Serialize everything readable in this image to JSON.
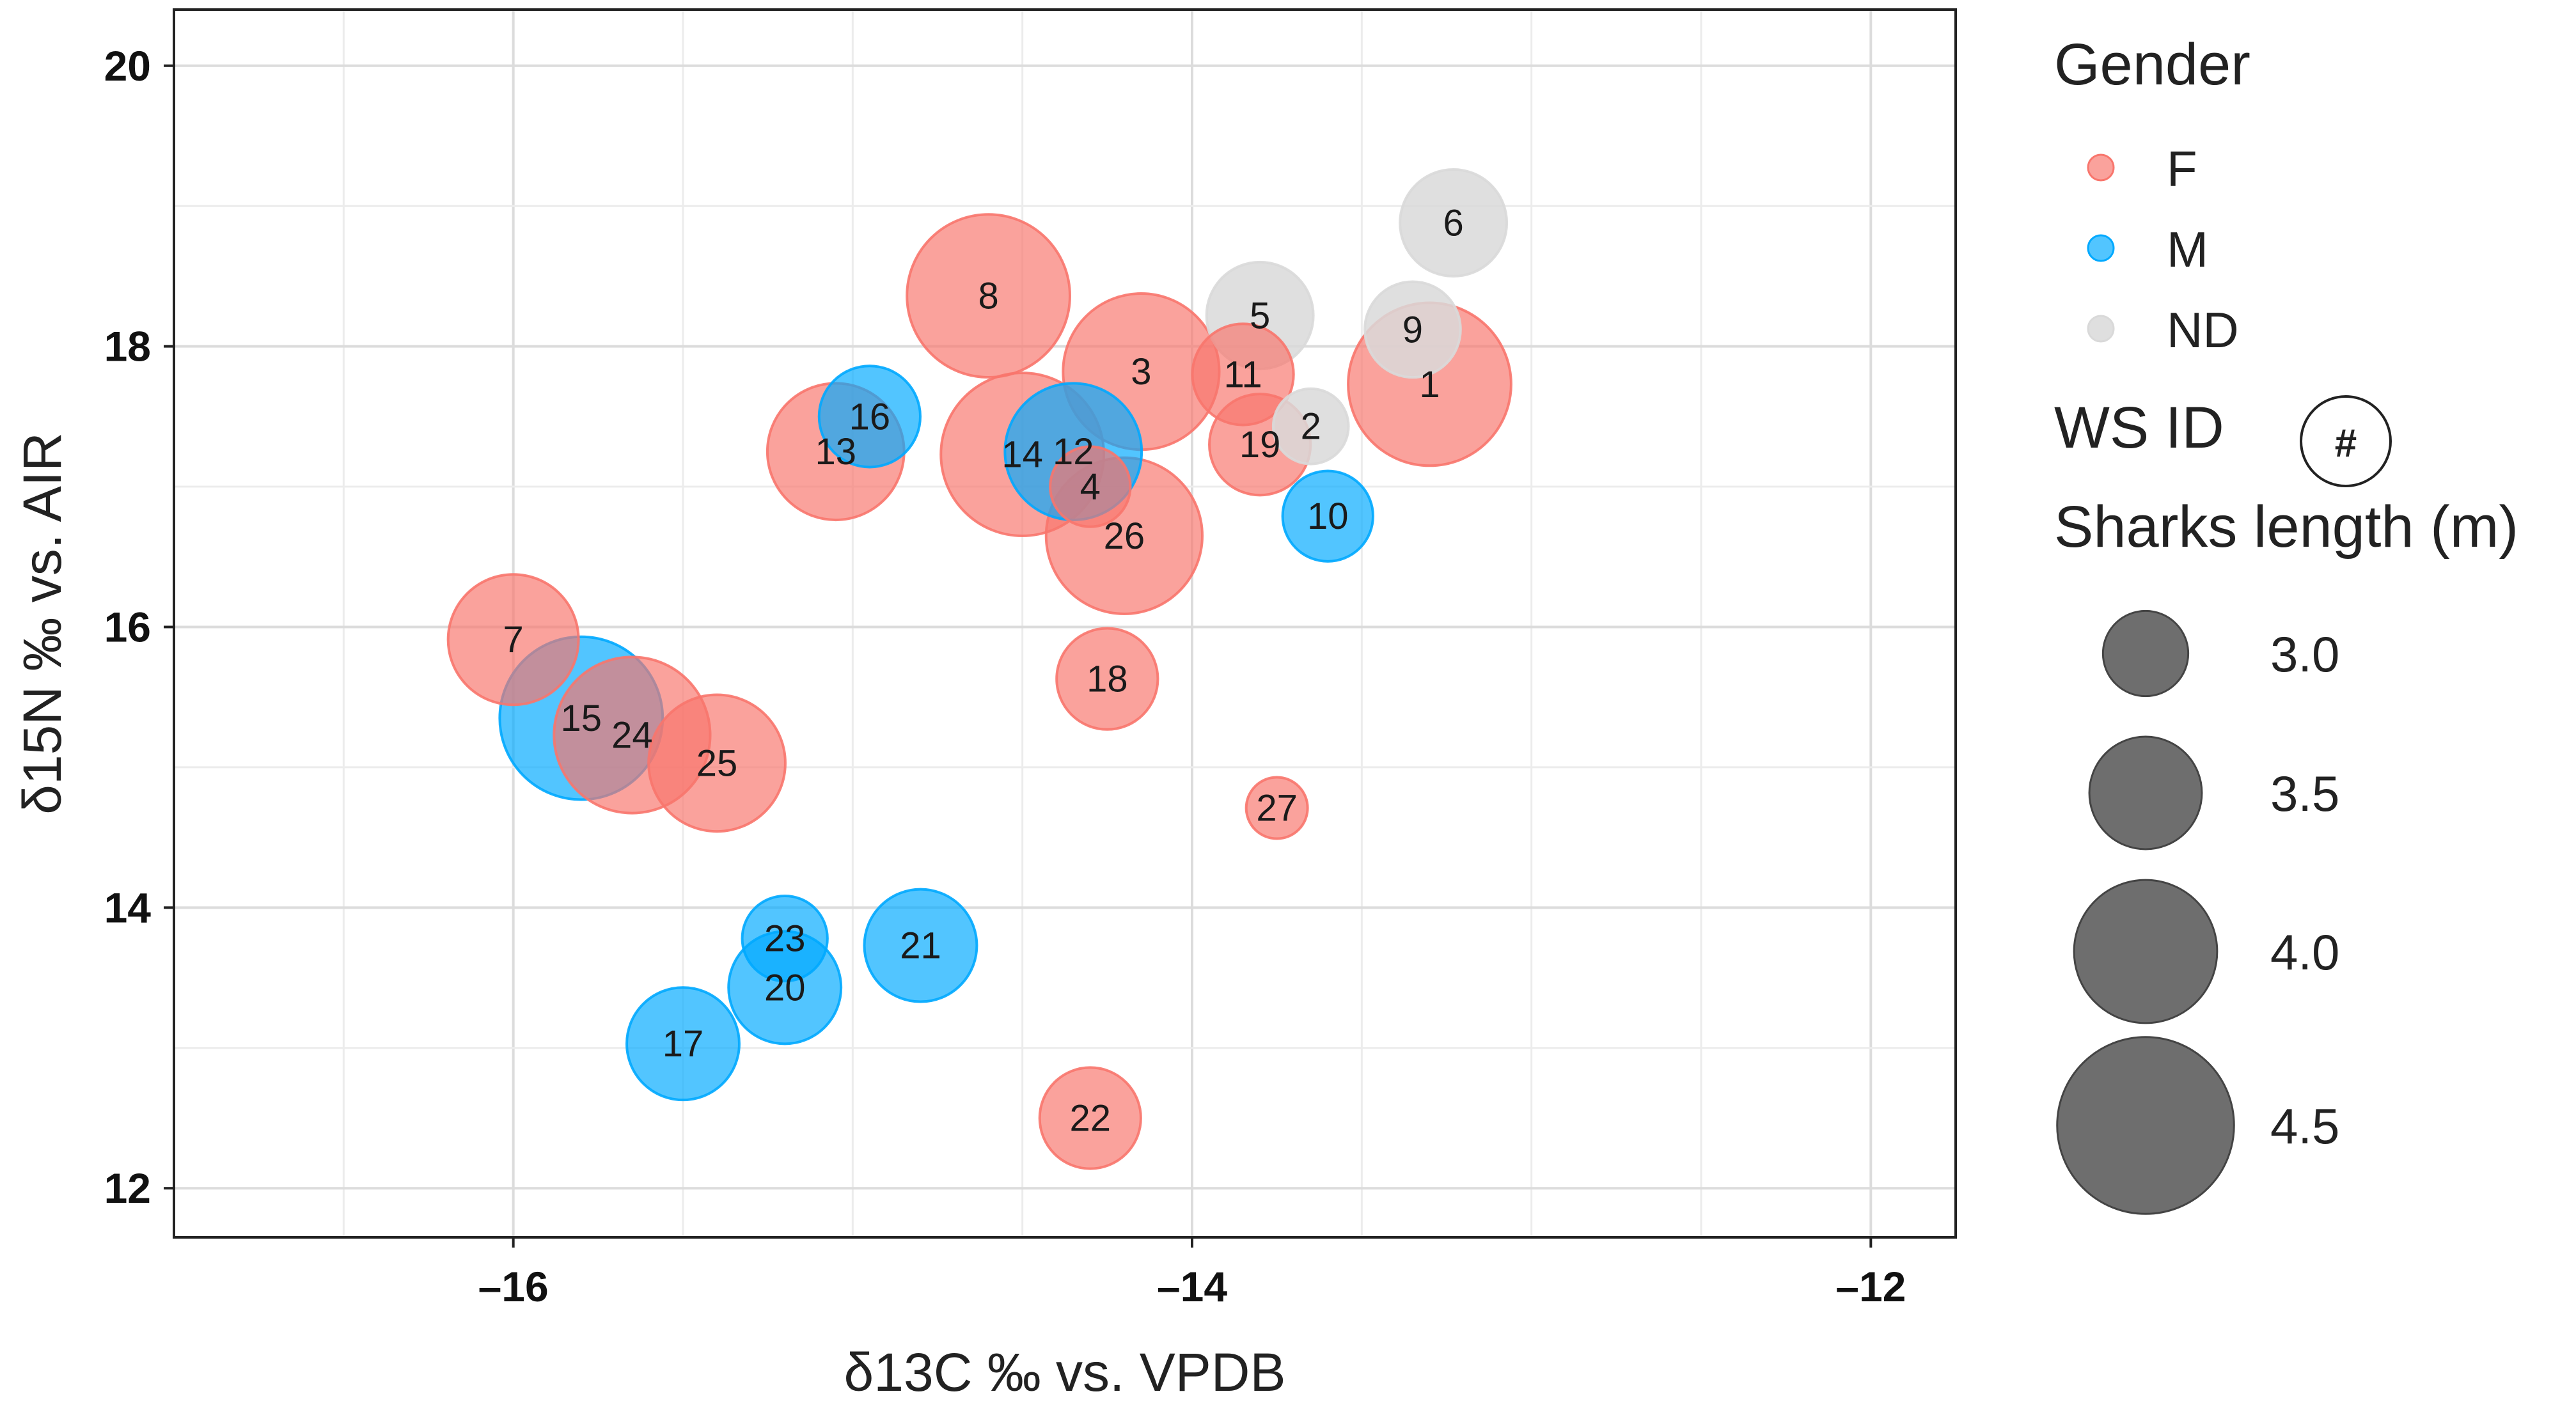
{
  "chart_data": {
    "type": "scatter",
    "subtype": "bubble",
    "title": "",
    "xlabel": "δ13C ‰ vs. VPDB",
    "ylabel": "δ15N ‰ vs. AIR",
    "xlim": [
      -17.0,
      -11.75
    ],
    "ylim": [
      11.65,
      20.4
    ],
    "x_ticks": [
      -16,
      -14,
      -12
    ],
    "x_tick_labels": [
      "–16",
      "–14",
      "–12"
    ],
    "y_ticks": [
      12,
      14,
      16,
      18,
      20
    ],
    "y_tick_labels": [
      "12",
      "14",
      "16",
      "18",
      "20"
    ],
    "grid": true,
    "colors": {
      "F": "#f8766d",
      "M": "#00a9ff",
      "ND": "#d9d9d9",
      "size_legend": "#666666"
    },
    "points": [
      {
        "id": "1",
        "gender": "F",
        "x": -13.3,
        "y": 17.73,
        "length": 4.3
      },
      {
        "id": "2",
        "gender": "ND",
        "x": -13.65,
        "y": 17.43,
        "length": 2.8
      },
      {
        "id": "3",
        "gender": "F",
        "x": -14.15,
        "y": 17.82,
        "length": 4.2
      },
      {
        "id": "4",
        "gender": "F",
        "x": -14.3,
        "y": 17.0,
        "length": 2.9
      },
      {
        "id": "5",
        "gender": "ND",
        "x": -13.8,
        "y": 18.22,
        "length": 3.4
      },
      {
        "id": "6",
        "gender": "ND",
        "x": -13.23,
        "y": 18.88,
        "length": 3.4
      },
      {
        "id": "7",
        "gender": "F",
        "x": -16.0,
        "y": 15.91,
        "length": 3.8
      },
      {
        "id": "8",
        "gender": "F",
        "x": -14.6,
        "y": 18.36,
        "length": 4.3
      },
      {
        "id": "9",
        "gender": "ND",
        "x": -13.35,
        "y": 18.12,
        "length": 3.2
      },
      {
        "id": "10",
        "gender": "M",
        "x": -13.6,
        "y": 16.79,
        "length": 3.1
      },
      {
        "id": "11",
        "gender": "F",
        "x": -13.85,
        "y": 17.8,
        "length": 3.3
      },
      {
        "id": "12",
        "gender": "M",
        "x": -14.35,
        "y": 17.25,
        "length": 3.9
      },
      {
        "id": "13",
        "gender": "F",
        "x": -15.05,
        "y": 17.25,
        "length": 3.9
      },
      {
        "id": "14",
        "gender": "F",
        "x": -14.5,
        "y": 17.23,
        "length": 4.3
      },
      {
        "id": "15",
        "gender": "M",
        "x": -15.8,
        "y": 15.35,
        "length": 4.3
      },
      {
        "id": "16",
        "gender": "M",
        "x": -14.95,
        "y": 17.5,
        "length": 3.3
      },
      {
        "id": "17",
        "gender": "M",
        "x": -15.5,
        "y": 13.03,
        "length": 3.5
      },
      {
        "id": "18",
        "gender": "F",
        "x": -14.25,
        "y": 15.63,
        "length": 3.3
      },
      {
        "id": "19",
        "gender": "F",
        "x": -13.8,
        "y": 17.3,
        "length": 3.3
      },
      {
        "id": "20",
        "gender": "M",
        "x": -15.2,
        "y": 13.43,
        "length": 3.5
      },
      {
        "id": "21",
        "gender": "M",
        "x": -14.8,
        "y": 13.73,
        "length": 3.5
      },
      {
        "id": "22",
        "gender": "F",
        "x": -14.3,
        "y": 12.5,
        "length": 3.3
      },
      {
        "id": "23",
        "gender": "M",
        "x": -15.2,
        "y": 13.78,
        "length": 3.0
      },
      {
        "id": "24",
        "gender": "F",
        "x": -15.65,
        "y": 15.23,
        "length": 4.2
      },
      {
        "id": "25",
        "gender": "F",
        "x": -15.4,
        "y": 15.03,
        "length": 3.9
      },
      {
        "id": "26",
        "gender": "F",
        "x": -14.2,
        "y": 16.65,
        "length": 4.2
      },
      {
        "id": "27",
        "gender": "F",
        "x": -13.75,
        "y": 14.71,
        "length": 2.5
      }
    ],
    "legend": {
      "placement": "right",
      "gender_title": "Gender",
      "gender_items": [
        {
          "key": "F",
          "label": "F"
        },
        {
          "key": "M",
          "label": "M"
        },
        {
          "key": "ND",
          "label": "ND"
        }
      ],
      "id_title": "WS ID",
      "id_symbol": "#",
      "size_title": "Sharks length (m)",
      "size_items": [
        {
          "value": 3.0,
          "label": "3.0"
        },
        {
          "value": 3.5,
          "label": "3.5"
        },
        {
          "value": 4.0,
          "label": "4.0"
        },
        {
          "value": 4.5,
          "label": "4.5"
        }
      ]
    }
  }
}
